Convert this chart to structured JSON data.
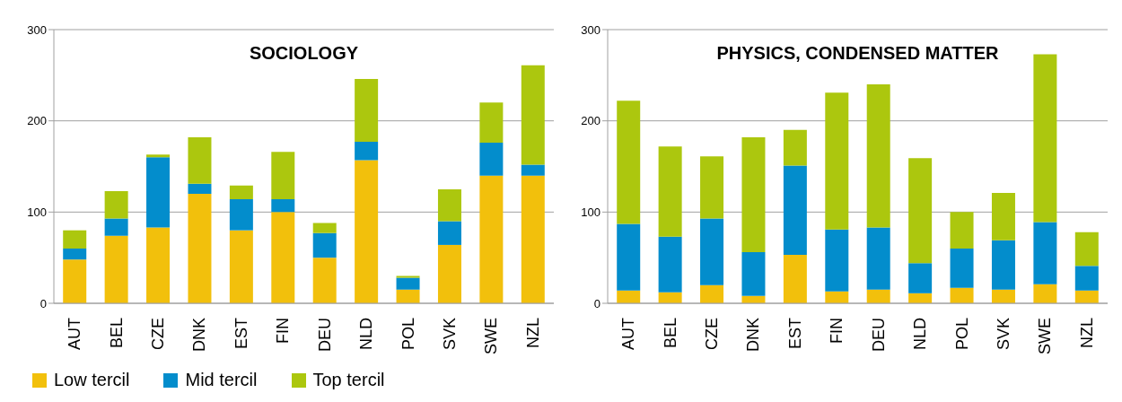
{
  "chart_data": [
    {
      "type": "bar",
      "title": "SOCIOLOGY",
      "stacked": true,
      "grid": "y",
      "legend": "bottom left",
      "ylim": [
        0,
        300
      ],
      "yticks": [
        0,
        100,
        200,
        300
      ],
      "categories": [
        "AUT",
        "BEL",
        "CZE",
        "DNK",
        "EST",
        "FIN",
        "DEU",
        "NLD",
        "POL",
        "SVK",
        "SWE",
        "NZL"
      ],
      "series": [
        {
          "name": "Low tercil",
          "color": "#f2c00c",
          "values": [
            48,
            74,
            83,
            120,
            80,
            100,
            50,
            157,
            15,
            64,
            140,
            140
          ]
        },
        {
          "name": "Mid tercil",
          "color": "#038dcc",
          "values": [
            12,
            19,
            77,
            11,
            34,
            14,
            27,
            20,
            13,
            26,
            36,
            12
          ]
        },
        {
          "name": "Top tercil",
          "color": "#acc70e",
          "values": [
            20,
            30,
            3,
            51,
            15,
            52,
            11,
            69,
            2,
            35,
            44,
            109
          ]
        }
      ]
    },
    {
      "type": "bar",
      "title": "PHYSICS, CONDENSED MATTER",
      "stacked": true,
      "grid": "y",
      "ylim": [
        0,
        300
      ],
      "yticks": [
        0,
        100,
        200,
        300
      ],
      "categories": [
        "AUT",
        "BEL",
        "CZE",
        "DNK",
        "EST",
        "FIN",
        "DEU",
        "NLD",
        "POL",
        "SVK",
        "SWE",
        "NZL"
      ],
      "series": [
        {
          "color": "#f2c00c",
          "values": [
            14,
            12,
            20,
            8,
            53,
            13,
            15,
            11,
            17,
            15,
            21,
            14
          ]
        },
        {
          "color": "#038dcc",
          "values": [
            73,
            61,
            73,
            48,
            98,
            68,
            68,
            33,
            43,
            54,
            68,
            27
          ]
        },
        {
          "color": "#acc70e",
          "values": [
            135,
            99,
            68,
            126,
            39,
            150,
            157,
            115,
            40,
            52,
            184,
            37
          ]
        }
      ]
    }
  ]
}
